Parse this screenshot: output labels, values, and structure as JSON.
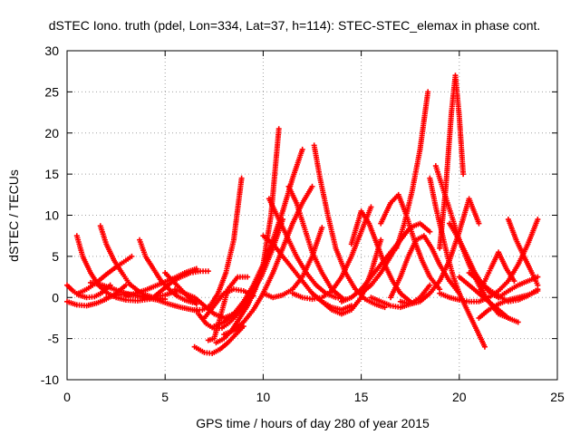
{
  "chart_data": {
    "type": "scatter",
    "title": "dSTEC Iono. truth (pdel, Lon=334, Lat=37, h=114): STEC-STEC_elemax in phase cont.",
    "xlabel": "GPS time / hours of day 280 of year 2015",
    "ylabel": "dSTEC  / TECUs",
    "xlim": [
      0,
      25
    ],
    "ylim": [
      -10,
      30
    ],
    "xticks": [
      0,
      5,
      10,
      15,
      20,
      25
    ],
    "yticks": [
      -10,
      -5,
      0,
      5,
      10,
      15,
      20,
      25,
      30
    ],
    "xtick_labels": [
      "0",
      "5",
      "10",
      "15",
      "20",
      "25"
    ],
    "ytick_labels": [
      "-10",
      "-5",
      "0",
      "5",
      "10",
      "15",
      "20",
      "25",
      "30"
    ],
    "grid": true,
    "legend": "none",
    "marker": "plus",
    "color": "#ff0000",
    "series": [
      {
        "x": [
          0.0,
          0.5,
          1.0,
          1.5,
          2.0,
          2.5,
          3.0
        ],
        "y": [
          -0.5,
          -0.9,
          -1.0,
          -0.7,
          -0.2,
          0.5,
          1.5
        ]
      },
      {
        "x": [
          0.0,
          0.3,
          0.6,
          1.0,
          1.4,
          1.8,
          2.2
        ],
        "y": [
          1.5,
          0.8,
          0.3,
          0.0,
          0.1,
          0.6,
          1.5
        ]
      },
      {
        "x": [
          0.5,
          0.8,
          1.2,
          1.6,
          2.0,
          2.5,
          3.0,
          3.6,
          4.2
        ],
        "y": [
          7.5,
          5.0,
          3.0,
          1.5,
          0.6,
          0.0,
          -0.3,
          -0.4,
          -0.2
        ]
      },
      {
        "x": [
          1.7,
          2.0,
          2.4,
          2.8,
          3.2,
          3.8,
          4.4,
          5.0
        ],
        "y": [
          8.7,
          6.5,
          4.5,
          3.0,
          1.6,
          0.5,
          0.0,
          -0.2
        ]
      },
      {
        "x": [
          0.5,
          1.0,
          1.5,
          2.0,
          2.5,
          3.0,
          3.3
        ],
        "y": [
          0.4,
          1.0,
          1.8,
          2.8,
          3.7,
          4.5,
          5.0
        ]
      },
      {
        "x": [
          1.2,
          1.8,
          2.4,
          3.0,
          3.6,
          4.3,
          5.0,
          5.6
        ],
        "y": [
          1.8,
          1.5,
          1.0,
          0.5,
          0.2,
          0.0,
          0.3,
          0.8
        ]
      },
      {
        "x": [
          3.7,
          4.0,
          4.4,
          4.8,
          5.2,
          5.6,
          6.0,
          6.4
        ],
        "y": [
          7.0,
          5.0,
          3.5,
          2.0,
          1.0,
          0.2,
          -0.3,
          -0.6
        ]
      },
      {
        "x": [
          2.0,
          2.8,
          3.4,
          4.0,
          4.6,
          5.2,
          5.8,
          6.6
        ],
        "y": [
          0.0,
          0.4,
          0.3,
          0.0,
          -0.3,
          -0.8,
          -1.2,
          -1.6
        ]
      },
      {
        "x": [
          3.0,
          3.5,
          4.0,
          4.5,
          5.0,
          5.5,
          6.0,
          6.6
        ],
        "y": [
          0.2,
          0.5,
          0.9,
          1.4,
          1.9,
          2.4,
          3.0,
          3.5
        ]
      },
      {
        "x": [
          4.5,
          4.9,
          5.3,
          5.8,
          6.3,
          6.8,
          7.2
        ],
        "y": [
          0.2,
          1.0,
          1.8,
          2.5,
          3.0,
          3.2,
          3.2
        ]
      },
      {
        "x": [
          5.0,
          5.4,
          5.8,
          6.2,
          6.6
        ],
        "y": [
          3.0,
          2.0,
          1.0,
          0.0,
          -0.8
        ]
      },
      {
        "x": [
          5.5,
          6.0,
          6.5,
          7.0,
          7.5,
          8.0,
          8.5,
          9.0
        ],
        "y": [
          1.0,
          0.5,
          0.0,
          -1.0,
          -2.0,
          -2.5,
          -2.0,
          -1.0
        ]
      },
      {
        "x": [
          6.5,
          7.0,
          7.4,
          7.8,
          8.2,
          8.6,
          9.0
        ],
        "y": [
          -6.0,
          -6.7,
          -6.8,
          -6.3,
          -5.5,
          -4.5,
          -3.5
        ]
      },
      {
        "x": [
          6.7,
          7.1,
          7.5,
          7.9,
          8.3,
          8.8,
          9.3,
          9.9,
          10.5,
          11.0
        ],
        "y": [
          -2.0,
          -3.2,
          -3.8,
          -3.7,
          -3.0,
          -1.8,
          0.0,
          2.5,
          6.0,
          9.5
        ]
      },
      {
        "x": [
          6.5,
          6.9,
          7.3,
          7.7,
          8.1,
          8.5,
          8.9
        ],
        "y": [
          -1.5,
          -1.5,
          -1.0,
          0.5,
          3.0,
          7.0,
          14.5
        ]
      },
      {
        "x": [
          7.2,
          7.5,
          7.8,
          8.2,
          8.7,
          9.2
        ],
        "y": [
          -5.2,
          -5.0,
          -2.5,
          1.0,
          2.5,
          2.5
        ]
      },
      {
        "x": [
          7.0,
          7.5,
          8.0,
          8.5,
          9.0,
          9.5
        ],
        "y": [
          -2.5,
          -1.0,
          0.5,
          1.0,
          0.8,
          0.2
        ]
      },
      {
        "x": [
          7.6,
          8.0,
          8.4,
          8.8,
          9.2,
          9.6,
          10.0,
          10.4,
          10.8
        ],
        "y": [
          -5.5,
          -5.0,
          -4.0,
          -2.5,
          -1.0,
          1.0,
          4.0,
          10.0,
          20.5
        ]
      },
      {
        "x": [
          7.5,
          8.0,
          8.5,
          9.0,
          9.5,
          10.0,
          10.5,
          11.0,
          11.5,
          12.0
        ],
        "y": [
          -3.5,
          -3.0,
          -2.0,
          -0.5,
          1.5,
          4.0,
          7.0,
          10.5,
          14.5,
          18.0
        ]
      },
      {
        "x": [
          8.0,
          8.5,
          9.0,
          9.5,
          10.0,
          10.5,
          11.0,
          11.5,
          12.0,
          12.5
        ],
        "y": [
          -4.5,
          -4.0,
          -3.0,
          -1.5,
          0.5,
          3.0,
          6.0,
          9.0,
          11.5,
          13.5
        ]
      },
      {
        "x": [
          10.0,
          10.5,
          11.0,
          11.5,
          12.0,
          12.5,
          13.0,
          13.5,
          14.0,
          14.5
        ],
        "y": [
          7.5,
          6.5,
          5.0,
          3.5,
          2.0,
          0.5,
          -0.5,
          -1.2,
          -1.5,
          -1.0
        ]
      },
      {
        "x": [
          10.3,
          10.7,
          11.2,
          11.7,
          12.2,
          12.7,
          13.2,
          13.7,
          14.2
        ],
        "y": [
          12.0,
          10.0,
          7.5,
          5.0,
          3.0,
          1.5,
          0.5,
          0.0,
          -0.2
        ]
      },
      {
        "x": [
          11.3,
          11.7,
          12.1,
          12.5,
          13.0,
          13.5,
          14.0
        ],
        "y": [
          13.5,
          11.5,
          8.5,
          5.5,
          3.0,
          1.0,
          0.0
        ]
      },
      {
        "x": [
          12.6,
          12.9,
          13.3,
          13.7,
          14.2,
          14.7,
          15.2,
          15.7,
          16.2
        ],
        "y": [
          18.5,
          14.5,
          10.0,
          6.0,
          3.0,
          1.0,
          -0.2,
          -0.8,
          -1.2
        ]
      },
      {
        "x": [
          10.0,
          10.5,
          11.0,
          11.5,
          12.0,
          12.5,
          13.0
        ],
        "y": [
          0.5,
          0.0,
          0.3,
          1.0,
          2.5,
          5.0,
          8.5
        ]
      },
      {
        "x": [
          11.5,
          12.0,
          12.5,
          13.0,
          13.5,
          14.0,
          14.5,
          15.0,
          15.5
        ],
        "y": [
          0.5,
          0.0,
          -0.2,
          0.0,
          0.8,
          2.5,
          5.0,
          8.0,
          11.0
        ]
      },
      {
        "x": [
          12.5,
          13.0,
          13.5,
          14.0,
          14.5,
          15.0,
          15.5,
          16.0
        ],
        "y": [
          0.5,
          -0.5,
          -1.5,
          -2.0,
          -1.5,
          0.0,
          3.0,
          7.0
        ]
      },
      {
        "x": [
          14.0,
          14.5,
          15.0,
          15.5,
          16.0,
          16.5,
          17.0,
          17.5
        ],
        "y": [
          -0.5,
          0.0,
          1.0,
          2.5,
          4.0,
          5.5,
          7.0,
          8.5
        ]
      },
      {
        "x": [
          14.5,
          15.0,
          15.4,
          15.8,
          16.2,
          16.6,
          17.0,
          17.5
        ],
        "y": [
          6.5,
          10.5,
          9.0,
          6.5,
          4.0,
          2.0,
          0.5,
          -0.5
        ]
      },
      {
        "x": [
          15.0,
          15.5,
          16.0,
          16.5,
          17.0,
          17.5,
          18.0,
          18.5
        ],
        "y": [
          0.5,
          1.5,
          3.0,
          5.0,
          7.0,
          8.5,
          9.0,
          8.0
        ]
      },
      {
        "x": [
          15.5,
          16.0,
          16.5,
          17.0,
          17.5,
          18.0,
          18.5
        ],
        "y": [
          0.0,
          -0.5,
          -1.0,
          -1.2,
          -0.8,
          0.0,
          1.5
        ]
      },
      {
        "x": [
          16.0,
          16.5,
          16.9,
          17.3,
          17.7,
          18.1,
          18.5,
          19.0
        ],
        "y": [
          9.0,
          11.5,
          12.5,
          10.0,
          7.0,
          4.5,
          2.5,
          1.0
        ]
      },
      {
        "x": [
          16.5,
          17.0,
          17.4,
          17.8,
          18.2,
          18.6,
          19.0,
          19.5,
          20.0
        ],
        "y": [
          0.0,
          2.5,
          5.0,
          7.0,
          7.5,
          6.0,
          4.0,
          2.0,
          0.5
        ]
      },
      {
        "x": [
          16.8,
          17.2,
          17.6,
          18.0,
          18.4
        ],
        "y": [
          6.0,
          9.0,
          13.0,
          18.0,
          25.0
        ]
      },
      {
        "x": [
          17.0,
          17.5,
          18.0,
          18.5,
          19.0,
          19.5,
          20.0,
          20.5,
          21.0
        ],
        "y": [
          -0.5,
          -0.8,
          -0.5,
          0.5,
          2.0,
          4.5,
          8.0,
          12.0,
          9.0
        ]
      },
      {
        "x": [
          18.5,
          18.8,
          19.1,
          19.4,
          19.7,
          20.0,
          20.4,
          20.8,
          21.3
        ],
        "y": [
          14.5,
          11.0,
          8.0,
          5.0,
          2.5,
          0.5,
          -1.5,
          -3.5,
          -6.0
        ]
      },
      {
        "x": [
          18.8,
          19.2,
          19.6,
          20.0,
          20.5,
          21.0,
          21.5,
          22.0,
          22.5
        ],
        "y": [
          16.0,
          13.0,
          10.0,
          7.0,
          4.0,
          1.5,
          -0.5,
          -2.0,
          -2.5
        ]
      },
      {
        "x": [
          19.0,
          19.3,
          19.6,
          19.8,
          20.0,
          20.2
        ],
        "y": [
          6.0,
          13.0,
          22.5,
          27.0,
          22.0,
          15.0
        ]
      },
      {
        "x": [
          19.0,
          19.5,
          20.0,
          20.5,
          21.0,
          21.5,
          22.0,
          22.5,
          23.0,
          23.5,
          24.0
        ],
        "y": [
          0.5,
          0.0,
          -0.3,
          -0.5,
          -0.5,
          0.0,
          0.8,
          2.0,
          4.0,
          6.5,
          9.5
        ]
      },
      {
        "x": [
          19.5,
          20.0,
          20.4,
          20.8,
          21.2,
          21.6,
          22.0
        ],
        "y": [
          9.0,
          7.0,
          5.0,
          3.0,
          1.5,
          0.5,
          0.0
        ]
      },
      {
        "x": [
          20.0,
          20.5,
          21.0,
          21.5,
          22.0,
          22.5,
          23.0
        ],
        "y": [
          2.5,
          1.5,
          0.5,
          -0.5,
          -1.5,
          -2.5,
          -3.0
        ]
      },
      {
        "x": [
          21.0,
          21.3,
          21.6,
          22.0,
          22.4,
          22.8
        ],
        "y": [
          0.5,
          2.0,
          3.5,
          5.5,
          3.5,
          2.0
        ]
      },
      {
        "x": [
          21.0,
          21.5,
          22.0,
          22.5,
          23.0,
          23.5,
          24.0
        ],
        "y": [
          -2.5,
          -1.5,
          -0.8,
          -0.3,
          0.0,
          0.3,
          0.8
        ]
      },
      {
        "x": [
          22.5,
          22.9,
          23.3,
          23.7,
          24.0
        ],
        "y": [
          9.5,
          7.0,
          5.0,
          3.0,
          1.5
        ]
      },
      {
        "x": [
          22.0,
          22.5,
          23.0,
          23.5,
          24.0
        ],
        "y": [
          0.0,
          0.8,
          1.5,
          2.0,
          2.5
        ]
      },
      {
        "x": [
          20.5,
          21.0,
          21.5,
          22.0,
          22.5,
          23.0,
          23.5,
          24.0
        ],
        "y": [
          3.0,
          2.0,
          1.0,
          0.2,
          -0.5,
          -0.3,
          0.2,
          1.0
        ]
      }
    ]
  }
}
